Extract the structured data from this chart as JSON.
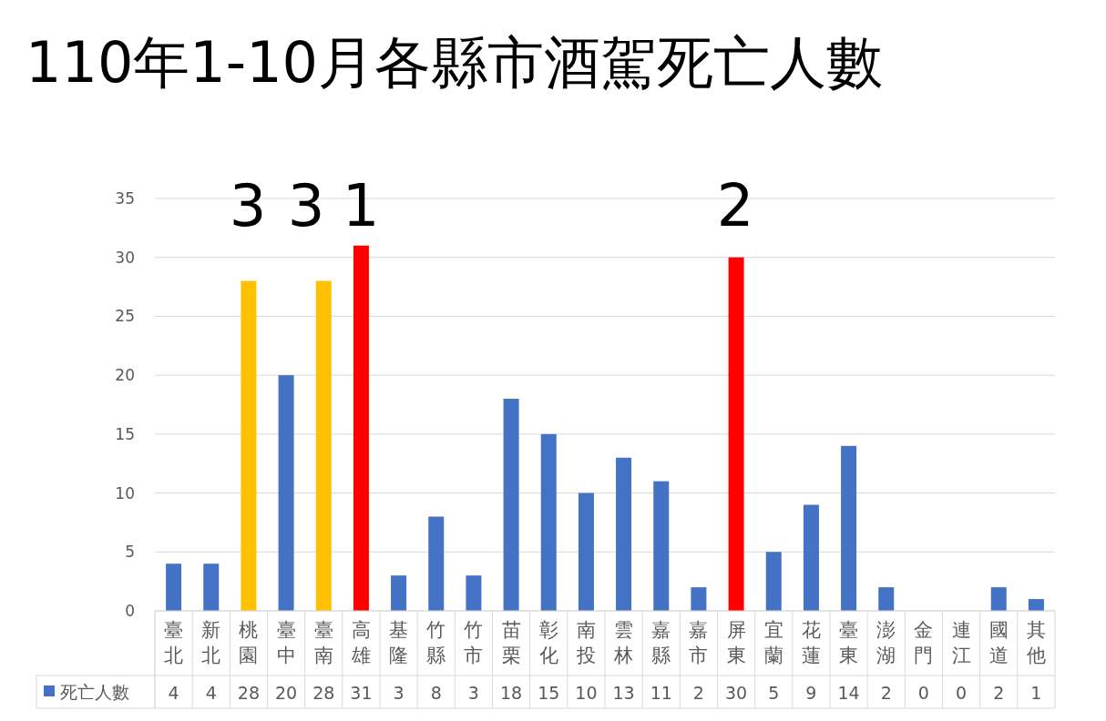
{
  "chart_data": {
    "type": "bar",
    "title": "110年1-10月各縣市酒駕死亡人數",
    "categories": [
      "臺北",
      "新北",
      "桃園",
      "臺中",
      "臺南",
      "高雄",
      "基隆",
      "竹縣",
      "竹市",
      "苗栗",
      "彰化",
      "南投",
      "雲林",
      "嘉縣",
      "嘉市",
      "屏東",
      "宜蘭",
      "花蓮",
      "臺東",
      "澎湖",
      "金門",
      "連江",
      "國道",
      "其他"
    ],
    "series": [
      {
        "name": "死亡人數",
        "color": "#4472c4",
        "values": [
          4,
          4,
          28,
          20,
          28,
          31,
          3,
          8,
          3,
          18,
          15,
          10,
          13,
          11,
          2,
          30,
          5,
          9,
          14,
          2,
          0,
          0,
          2,
          1
        ],
        "colors": [
          "#4472c4",
          "#4472c4",
          "#ffc000",
          "#4472c4",
          "#ffc000",
          "#ff0000",
          "#4472c4",
          "#4472c4",
          "#4472c4",
          "#4472c4",
          "#4472c4",
          "#4472c4",
          "#4472c4",
          "#4472c4",
          "#4472c4",
          "#ff0000",
          "#4472c4",
          "#4472c4",
          "#4472c4",
          "#4472c4",
          "#4472c4",
          "#4472c4",
          "#4472c4",
          "#4472c4"
        ]
      }
    ],
    "ylim": [
      0,
      35
    ],
    "yticks": [
      0,
      5,
      10,
      15,
      20,
      25,
      30,
      35
    ],
    "grid": "y",
    "legend": "bottom",
    "data_labels": true,
    "annotations": [
      "3",
      "3",
      "1",
      "2"
    ]
  }
}
